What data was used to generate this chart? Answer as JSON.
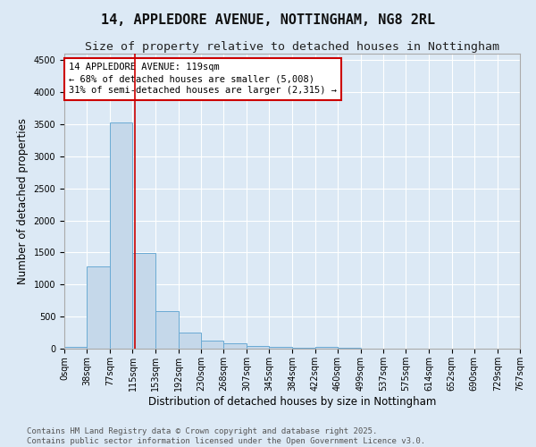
{
  "title_line1": "14, APPLEDORE AVENUE, NOTTINGHAM, NG8 2RL",
  "title_line2": "Size of property relative to detached houses in Nottingham",
  "xlabel": "Distribution of detached houses by size in Nottingham",
  "ylabel": "Number of detached properties",
  "bar_color": "#c5d8ea",
  "bar_edge_color": "#6aaad4",
  "background_color": "#dce9f5",
  "fig_background_color": "#dce9f5",
  "grid_color": "#ffffff",
  "annotation_text": "14 APPLEDORE AVENUE: 119sqm\n← 68% of detached houses are smaller (5,008)\n31% of semi-detached houses are larger (2,315) →",
  "vline_x": 119,
  "vline_color": "#cc0000",
  "annotation_box_edge": "#cc0000",
  "bins": [
    0,
    38,
    77,
    115,
    153,
    192,
    230,
    268,
    307,
    345,
    384,
    422,
    460,
    499,
    537,
    575,
    614,
    652,
    690,
    729,
    767
  ],
  "counts": [
    30,
    1280,
    3520,
    1490,
    580,
    245,
    120,
    80,
    40,
    25,
    20,
    30,
    10,
    0,
    0,
    0,
    0,
    0,
    0,
    0
  ],
  "ylim": [
    0,
    4600
  ],
  "yticks": [
    0,
    500,
    1000,
    1500,
    2000,
    2500,
    3000,
    3500,
    4000,
    4500
  ],
  "footer_line1": "Contains HM Land Registry data © Crown copyright and database right 2025.",
  "footer_line2": "Contains public sector information licensed under the Open Government Licence v3.0.",
  "title_fontsize": 11,
  "subtitle_fontsize": 9.5,
  "tick_fontsize": 7,
  "label_fontsize": 8.5,
  "footer_fontsize": 6.5,
  "annot_fontsize": 7.5
}
